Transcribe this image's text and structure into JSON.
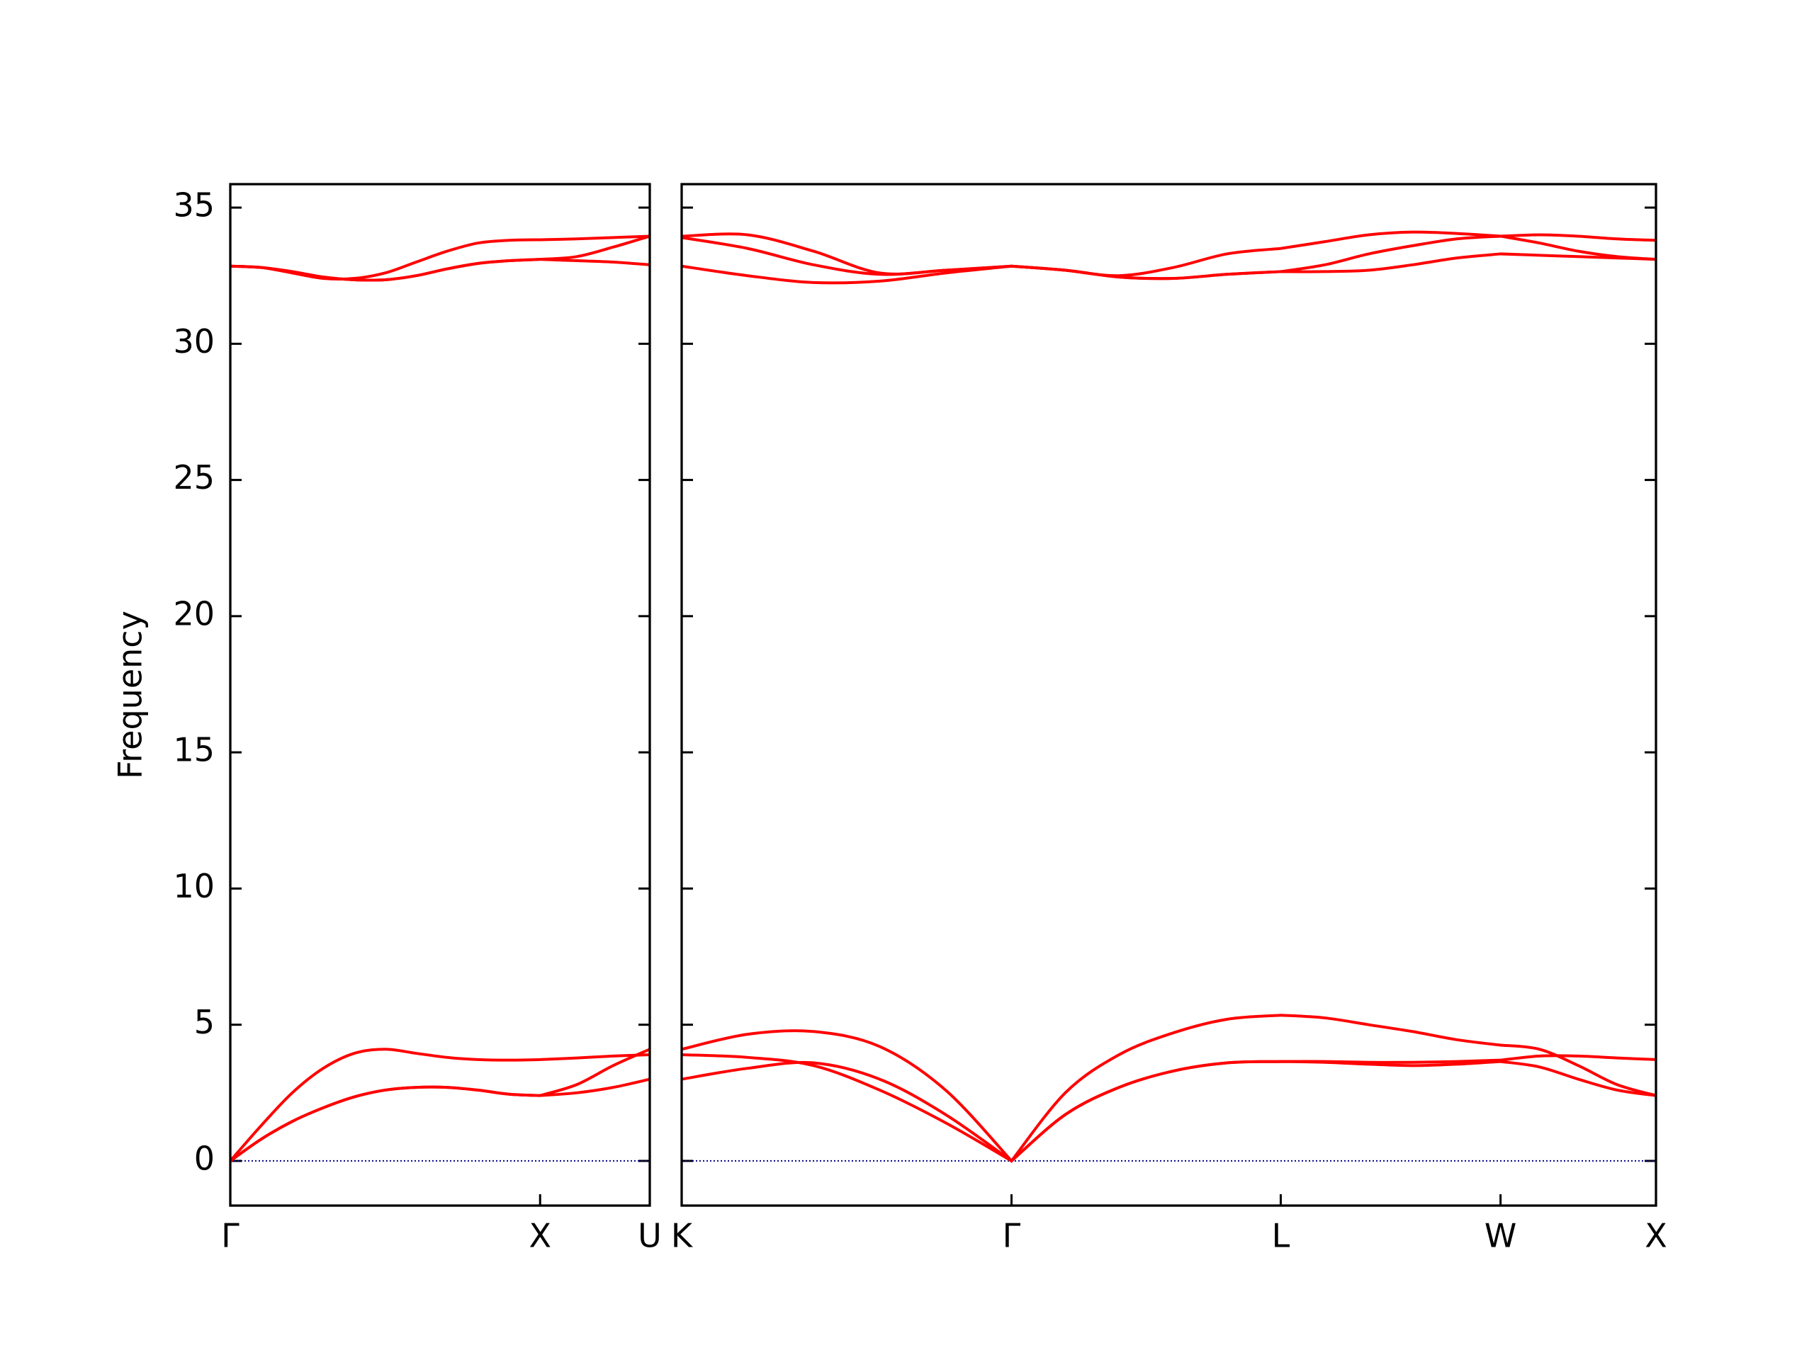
{
  "chart_data": [
    {
      "type": "line",
      "ylabel": "Frequency",
      "x": [
        0,
        0.1,
        0.2,
        0.3,
        0.4,
        0.5,
        0.6,
        0.7,
        0.8,
        0.9,
        1.0,
        1.118,
        1.236,
        1.354
      ],
      "series": [
        {
          "color": "#ff0000",
          "values": [
            0,
            0.8,
            1.45,
            1.95,
            2.35,
            2.6,
            2.7,
            2.7,
            2.6,
            2.45,
            2.4,
            2.5,
            2.7,
            3.0
          ]
        },
        {
          "color": "#ff0000",
          "values": [
            0,
            0.8,
            1.45,
            1.95,
            2.35,
            2.6,
            2.7,
            2.7,
            2.6,
            2.45,
            2.4,
            2.8,
            3.5,
            4.1
          ]
        },
        {
          "color": "#ff0000",
          "values": [
            0,
            1.3,
            2.5,
            3.4,
            3.95,
            4.1,
            3.95,
            3.8,
            3.72,
            3.7,
            3.72,
            3.78,
            3.85,
            3.9
          ]
        },
        {
          "color": "#ff0000",
          "values": [
            32.85,
            32.8,
            32.65,
            32.45,
            32.35,
            32.35,
            32.5,
            32.75,
            32.95,
            33.05,
            33.1,
            33.05,
            33.0,
            32.9
          ]
        },
        {
          "color": "#ff0000",
          "values": [
            32.85,
            32.8,
            32.65,
            32.45,
            32.35,
            32.35,
            32.5,
            32.75,
            32.95,
            33.05,
            33.1,
            33.2,
            33.55,
            33.95
          ]
        },
        {
          "color": "#ff0000",
          "values": [
            32.85,
            32.8,
            32.6,
            32.4,
            32.4,
            32.6,
            33.0,
            33.4,
            33.7,
            33.8,
            33.82,
            33.85,
            33.9,
            33.95
          ]
        }
      ],
      "xlim": [
        0,
        1.354
      ],
      "xticks": [
        {
          "value": 0,
          "label": "Γ"
        },
        {
          "value": 1.0,
          "label": "X"
        },
        {
          "value": 1.354,
          "label": "U"
        }
      ],
      "ylim": [
        -1.64,
        35.86
      ],
      "yticks": [
        0,
        5,
        10,
        15,
        20,
        25,
        30,
        35
      ],
      "ytick_labels": true,
      "zero_line": true,
      "zero_line_color": "#00008b"
    },
    {
      "type": "line",
      "x": [
        1.354,
        1.566,
        1.778,
        1.991,
        2.203,
        2.415,
        2.588,
        2.761,
        2.935,
        3.108,
        3.281,
        3.423,
        3.564,
        3.705,
        3.847,
        3.988,
        4.113,
        4.238,
        4.363,
        4.488
      ],
      "series": [
        {
          "color": "#ff0000",
          "values": [
            3.0,
            3.4,
            3.6,
            3.0,
            1.7,
            0,
            1.7,
            2.7,
            3.3,
            3.6,
            3.65,
            3.62,
            3.55,
            3.5,
            3.55,
            3.65,
            3.45,
            3.0,
            2.6,
            2.4
          ]
        },
        {
          "color": "#ff0000",
          "values": [
            3.9,
            3.8,
            3.5,
            2.6,
            1.4,
            0,
            1.7,
            2.7,
            3.3,
            3.6,
            3.65,
            3.65,
            3.62,
            3.62,
            3.65,
            3.7,
            3.85,
            3.85,
            3.78,
            3.72
          ]
        },
        {
          "color": "#ff0000",
          "values": [
            4.1,
            4.65,
            4.75,
            4.2,
            2.6,
            0,
            2.5,
            3.9,
            4.7,
            5.2,
            5.35,
            5.25,
            5.0,
            4.75,
            4.45,
            4.25,
            4.1,
            3.5,
            2.8,
            2.4
          ]
        },
        {
          "color": "#ff0000",
          "values": [
            32.85,
            32.5,
            32.25,
            32.3,
            32.6,
            32.85,
            32.7,
            32.45,
            32.4,
            32.55,
            32.65,
            32.65,
            32.7,
            32.9,
            33.15,
            33.3,
            33.25,
            33.2,
            33.15,
            33.1
          ]
        },
        {
          "color": "#ff0000",
          "values": [
            33.9,
            33.5,
            32.9,
            32.55,
            32.7,
            32.85,
            32.7,
            32.45,
            32.4,
            32.55,
            32.65,
            32.9,
            33.3,
            33.6,
            33.85,
            33.95,
            33.7,
            33.4,
            33.2,
            33.1
          ]
        },
        {
          "color": "#ff0000",
          "values": [
            33.95,
            34.0,
            33.4,
            32.6,
            32.7,
            32.85,
            32.7,
            32.5,
            32.8,
            33.3,
            33.5,
            33.75,
            34.0,
            34.1,
            34.05,
            33.95,
            34.0,
            33.95,
            33.85,
            33.8
          ]
        }
      ],
      "xlim": [
        1.354,
        4.488
      ],
      "xticks": [
        {
          "value": 1.354,
          "label": "K"
        },
        {
          "value": 2.415,
          "label": "Γ"
        },
        {
          "value": 3.281,
          "label": "L"
        },
        {
          "value": 3.988,
          "label": "W"
        },
        {
          "value": 4.488,
          "label": "X"
        }
      ],
      "ylim": [
        -1.64,
        35.86
      ],
      "yticks": [
        0,
        5,
        10,
        15,
        20,
        25,
        30,
        35
      ],
      "ytick_labels": false,
      "zero_line": true,
      "zero_line_color": "#00008b"
    }
  ]
}
